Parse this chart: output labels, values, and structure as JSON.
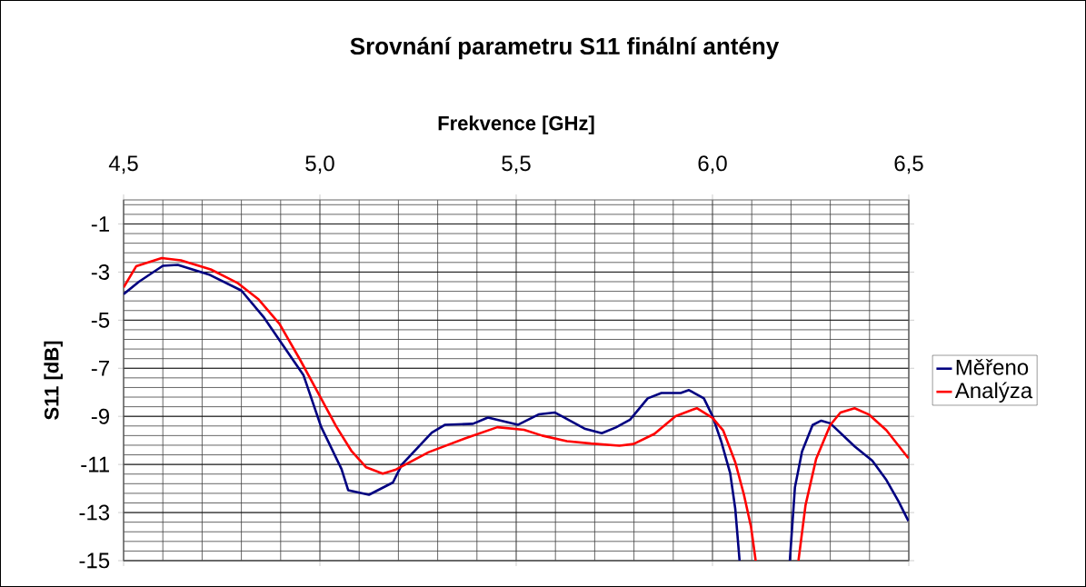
{
  "chart_data": {
    "type": "line",
    "title": "Srovnání parametru S11 finální antény",
    "xlabel": "Frekvence [GHz]",
    "ylabel": "S11 [dB]",
    "xlim": [
      4.5,
      6.5
    ],
    "xticks": [
      {
        "value": 4.5,
        "label": "4,5"
      },
      {
        "value": 5.0,
        "label": "5,0"
      },
      {
        "value": 5.5,
        "label": "5,5"
      },
      {
        "value": 6.0,
        "label": "6,0"
      },
      {
        "value": 6.5,
        "label": "6,5"
      }
    ],
    "ylim": [
      -15,
      0
    ],
    "yticks": [
      -15,
      -13,
      -11,
      -9,
      -7,
      -5,
      -3,
      -1
    ],
    "grid": true,
    "legend": "right",
    "series": [
      {
        "name": "Měřeno",
        "color": "#000080",
        "x": [
          4.5,
          4.54,
          4.6,
          4.638,
          4.72,
          4.8,
          4.858,
          4.904,
          4.958,
          5.003,
          5.055,
          5.072,
          5.125,
          5.186,
          5.209,
          5.285,
          5.319,
          5.39,
          5.428,
          5.505,
          5.557,
          5.598,
          5.624,
          5.674,
          5.718,
          5.754,
          5.79,
          5.835,
          5.87,
          5.919,
          5.94,
          5.978,
          6.0,
          6.022,
          6.045,
          6.058,
          6.069,
          6.13,
          6.197,
          6.21,
          6.228,
          6.255,
          6.277,
          6.3,
          6.362,
          6.407,
          6.443,
          6.474,
          6.499
        ],
        "values": [
          -3.92,
          -3.39,
          -2.74,
          -2.7,
          -3.12,
          -3.77,
          -4.9,
          -6.0,
          -7.28,
          -9.43,
          -11.19,
          -12.07,
          -12.26,
          -11.75,
          -11.0,
          -9.68,
          -9.35,
          -9.31,
          -9.05,
          -9.35,
          -8.92,
          -8.84,
          -9.06,
          -9.51,
          -9.7,
          -9.46,
          -9.14,
          -8.25,
          -8.03,
          -8.03,
          -7.91,
          -8.25,
          -8.99,
          -10.03,
          -11.36,
          -12.84,
          -15,
          null,
          -15,
          -11.95,
          -10.47,
          -9.36,
          -9.18,
          -9.29,
          -10.25,
          -10.84,
          -11.65,
          -12.54,
          -13.35
        ]
      },
      {
        "name": "Analýza",
        "color": "#ff0000",
        "x": [
          4.5,
          4.532,
          4.597,
          4.646,
          4.722,
          4.79,
          4.844,
          4.897,
          4.95,
          4.996,
          5.042,
          5.08,
          5.118,
          5.16,
          5.194,
          5.277,
          5.368,
          5.452,
          5.52,
          5.566,
          5.629,
          5.691,
          5.763,
          5.799,
          5.852,
          5.906,
          5.96,
          6.0,
          6.027,
          6.058,
          6.08,
          6.098,
          6.11,
          6.16,
          6.219,
          6.237,
          6.264,
          6.3,
          6.326,
          6.362,
          6.398,
          6.443,
          6.499
        ],
        "values": [
          -3.64,
          -2.76,
          -2.42,
          -2.51,
          -2.89,
          -3.45,
          -4.14,
          -5.15,
          -6.66,
          -8.04,
          -9.43,
          -10.43,
          -11.12,
          -11.38,
          -11.21,
          -10.49,
          -9.93,
          -9.45,
          -9.56,
          -9.8,
          -10.03,
          -10.13,
          -10.22,
          -10.15,
          -9.73,
          -8.99,
          -8.66,
          -9.06,
          -9.58,
          -10.91,
          -12.25,
          -13.58,
          -15,
          null,
          -15,
          -12.69,
          -10.77,
          -9.36,
          -8.84,
          -8.66,
          -8.92,
          -9.58,
          -10.74
        ]
      }
    ]
  }
}
